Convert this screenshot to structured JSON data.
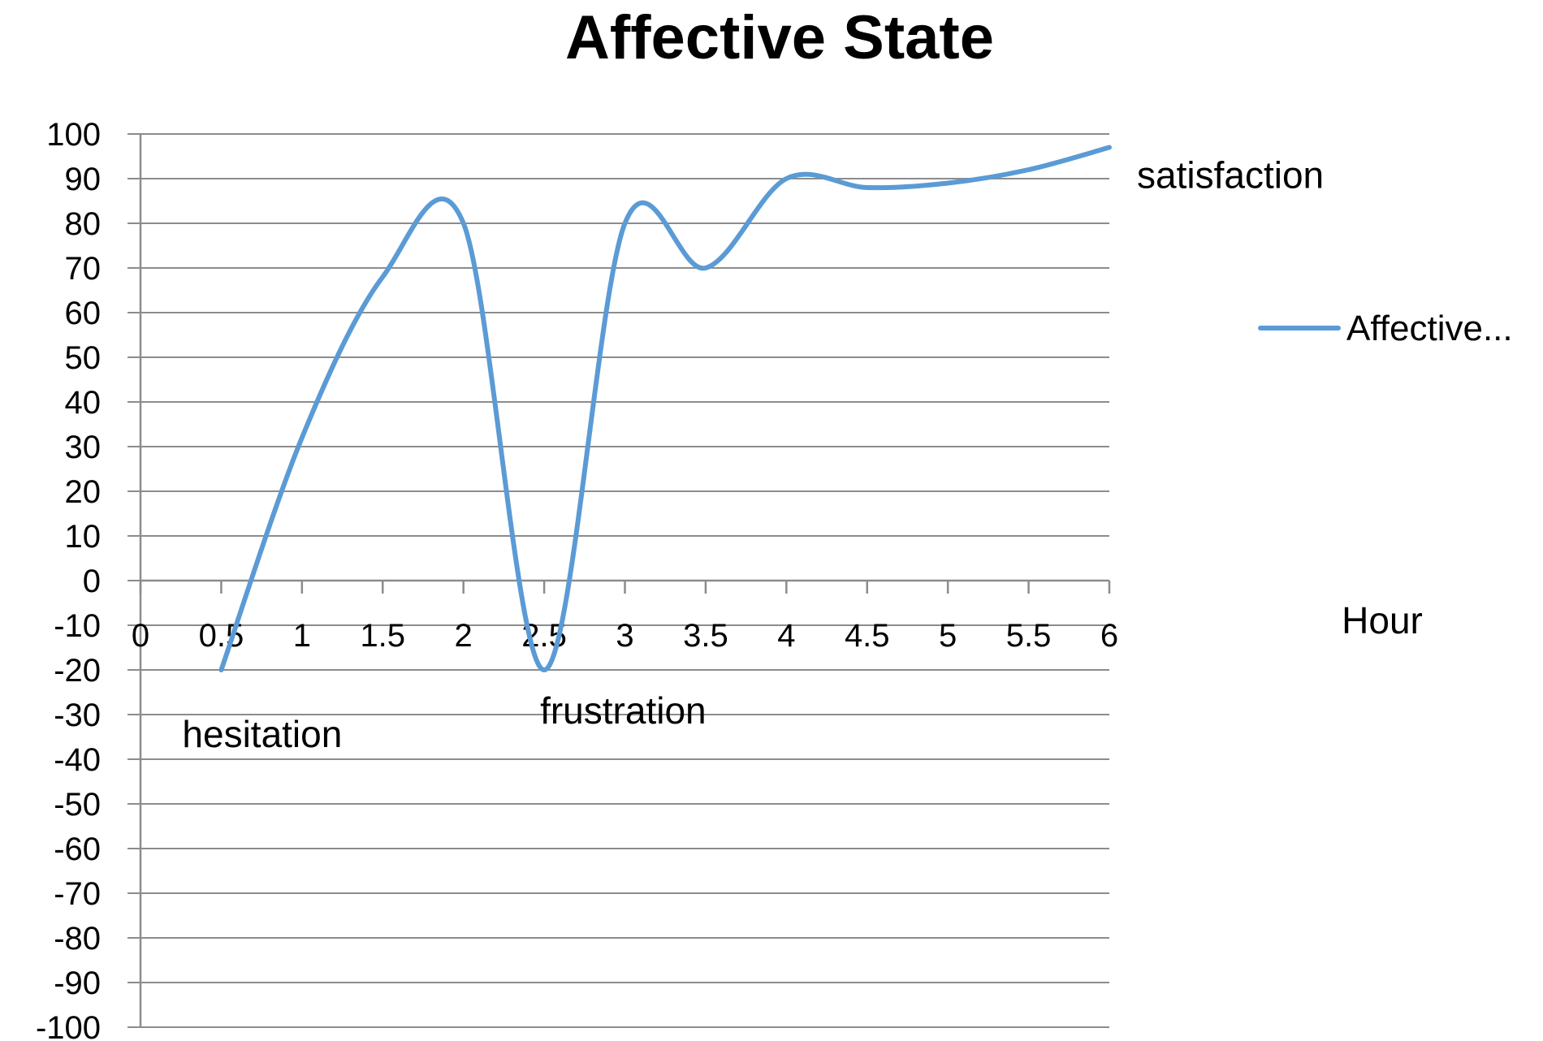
{
  "chart_data": {
    "type": "line",
    "title": "Affective State",
    "xlabel": "Hour",
    "ylabel": "",
    "xlim": [
      0,
      6
    ],
    "ylim": [
      -100,
      100
    ],
    "x_ticks": [
      "0",
      "0.5",
      "1",
      "1.5",
      "2",
      "2.5",
      "3",
      "3.5",
      "4",
      "4.5",
      "5",
      "5.5",
      "6"
    ],
    "y_ticks": [
      "100",
      "90",
      "80",
      "70",
      "60",
      "50",
      "40",
      "30",
      "20",
      "10",
      "0",
      "-10",
      "-20",
      "-30",
      "-40",
      "-50",
      "-60",
      "-70",
      "-80",
      "-90",
      "-100"
    ],
    "grid": true,
    "smooth": true,
    "legend_position": "right",
    "series": [
      {
        "name": "Affective...",
        "color": "#5b9bd5",
        "x": [
          0.5,
          1,
          1.5,
          2,
          2.5,
          3,
          3.5,
          4,
          4.5,
          5,
          5.5,
          6
        ],
        "y": [
          -20,
          32,
          68,
          80,
          -20,
          80,
          70,
          90,
          88,
          89,
          92,
          97
        ]
      }
    ],
    "annotations": [
      {
        "text": "hesitation",
        "x": 0.5,
        "y": -20
      },
      {
        "text": "frustration",
        "x": 2.5,
        "y": -20
      },
      {
        "text": "satisfaction",
        "x": 6,
        "y": 97
      }
    ]
  }
}
